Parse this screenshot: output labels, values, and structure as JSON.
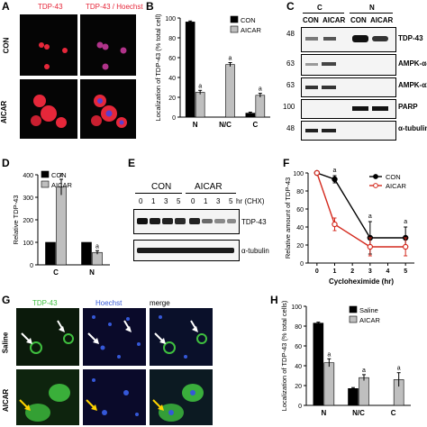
{
  "panels": {
    "A": {
      "letter": "A",
      "row_labels": [
        "CON",
        "AICAR"
      ],
      "col_labels": [
        "TDP-43",
        "TDP-43 / Hoechst"
      ]
    },
    "B": {
      "letter": "B"
    },
    "C": {
      "letter": "C",
      "frac_labels": [
        "C",
        "N"
      ],
      "lane_labels": [
        "CON",
        "AICAR",
        "CON",
        "AICAR"
      ],
      "mw": [
        "48",
        "63",
        "63",
        "100",
        "48"
      ],
      "proteins": [
        "TDP-43",
        "AMPK-α-p",
        "AMPK-α1",
        "PARP",
        "α-tubulin"
      ]
    },
    "D": {
      "letter": "D"
    },
    "E": {
      "letter": "E",
      "groups": [
        "CON",
        "AICAR"
      ],
      "times": [
        "0",
        "1",
        "3",
        "5",
        "0",
        "1",
        "3",
        "5"
      ],
      "time_unit": "hr (CHX)",
      "proteins": [
        "TDP-43",
        "α-tubulin"
      ]
    },
    "F": {
      "letter": "F"
    },
    "G": {
      "letter": "G",
      "row_labels": [
        "Saline",
        "AICAR"
      ],
      "col_labels": [
        "TDP-43",
        "Hoechst",
        "merge"
      ]
    },
    "H": {
      "letter": "H"
    }
  },
  "chart_data": [
    {
      "id": "B",
      "type": "bar",
      "categories": [
        "N",
        "N/C",
        "C"
      ],
      "series": [
        {
          "name": "CON",
          "values": [
            96,
            0,
            4
          ],
          "errors": [
            1,
            0,
            1
          ]
        },
        {
          "name": "AICAR",
          "values": [
            25,
            53,
            22
          ],
          "errors": [
            2,
            2,
            2
          ]
        }
      ],
      "significance": [
        "a",
        "a",
        "a"
      ],
      "ylabel": "Localization of TDP-43 (% total cell)",
      "ylim": [
        0,
        100
      ],
      "yticks": [
        0,
        20,
        40,
        60,
        80,
        100
      ],
      "legend": "top-right"
    },
    {
      "id": "D",
      "type": "bar",
      "categories": [
        "C",
        "N"
      ],
      "series": [
        {
          "name": "CON",
          "values": [
            100,
            100
          ],
          "errors": [
            0,
            0
          ]
        },
        {
          "name": "AICAR",
          "values": [
            345,
            55
          ],
          "errors": [
            35,
            8
          ]
        }
      ],
      "significance": [
        "a",
        "a"
      ],
      "ylabel": "Relative TDP-43",
      "ylim": [
        0,
        400
      ],
      "yticks": [
        0,
        100,
        200,
        300,
        400
      ],
      "legend": "top-left"
    },
    {
      "id": "F",
      "type": "line",
      "x": [
        0,
        1,
        3,
        5
      ],
      "series": [
        {
          "name": "CON",
          "values": [
            100,
            93,
            28,
            28
          ],
          "errors": [
            0,
            4,
            18,
            12
          ]
        },
        {
          "name": "AICAR",
          "values": [
            100,
            43,
            18,
            18
          ],
          "errors": [
            0,
            7,
            10,
            10
          ]
        }
      ],
      "significance": [
        "a",
        "a",
        "a"
      ],
      "xlabel": "Cycloheximide (hr)",
      "ylabel": "Relative amount of TDP-43",
      "xlim": [
        -0.5,
        5.5
      ],
      "xticks": [
        0,
        1,
        2,
        3,
        4,
        5
      ],
      "ylim": [
        0,
        100
      ],
      "yticks": [
        0,
        20,
        40,
        60,
        80,
        100
      ],
      "legend": "top-right"
    },
    {
      "id": "H",
      "type": "bar",
      "categories": [
        "N",
        "N/C",
        "C"
      ],
      "series": [
        {
          "name": "Saline",
          "values": [
            83,
            17,
            0
          ],
          "errors": [
            1,
            1,
            0
          ]
        },
        {
          "name": "AICAR",
          "values": [
            43,
            28,
            26
          ],
          "errors": [
            4,
            3,
            7
          ]
        }
      ],
      "significance": [
        "a",
        "a",
        "a"
      ],
      "ylabel": "Localization of TDP-43 (% total cells)",
      "ylim": [
        0,
        100
      ],
      "yticks": [
        0,
        20,
        40,
        60,
        80,
        100
      ],
      "legend": "top-right"
    }
  ],
  "colors": {
    "con": "#000000",
    "aicar": "#bfbfbf",
    "aicar_line": "#d42a1e",
    "tdp_red": "#e6273a",
    "hoechst_blue": "#3558d8",
    "tdp_green": "#3fbf3f"
  }
}
